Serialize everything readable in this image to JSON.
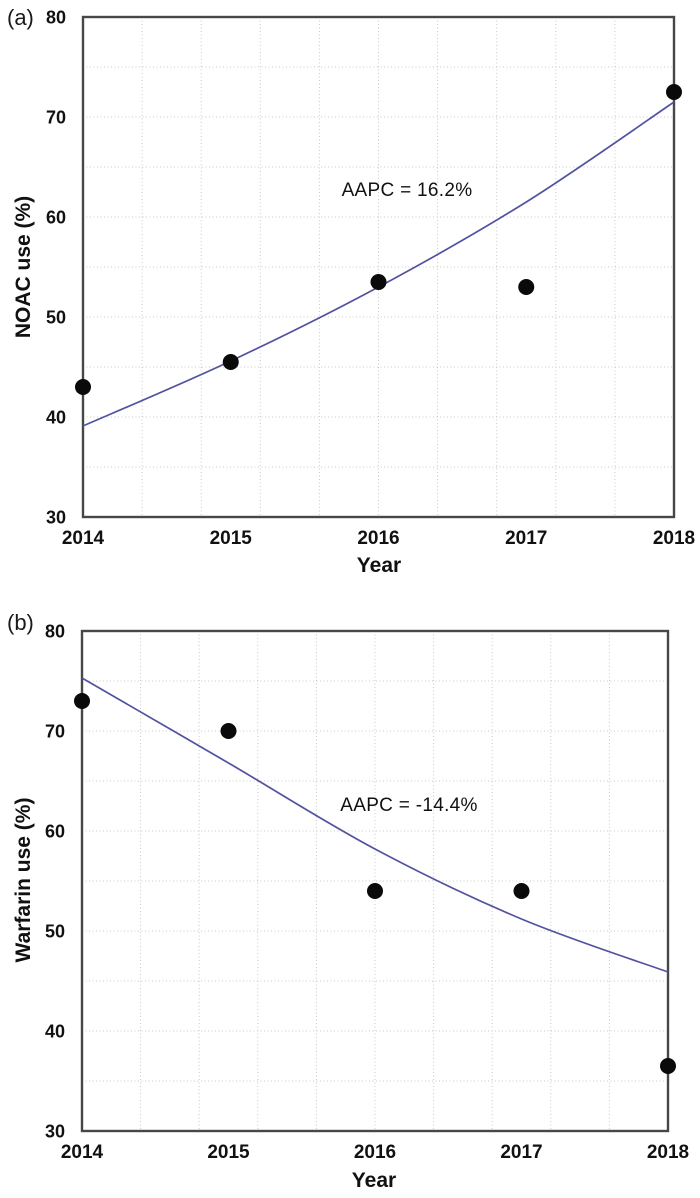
{
  "figure_type": "two-panel scatter plot with fitted trend lines",
  "chart_data": [
    {
      "type": "scatter",
      "panel_label": "(a)",
      "xlabel": "Year",
      "ylabel": "NOAC use (%)",
      "annotation": "AAPC = 16.2%",
      "x": [
        2014,
        2015,
        2016,
        2017,
        2018
      ],
      "points": [
        43.0,
        45.5,
        53.5,
        53.0,
        72.5
      ],
      "trend_line": [
        39.1,
        45.6,
        53.0,
        61.5,
        71.5
      ],
      "xlim": [
        2014,
        2018
      ],
      "ylim": [
        30,
        80
      ],
      "xtick_labels": [
        "2014",
        "2015",
        "2016",
        "2017",
        "2018"
      ],
      "ytick_values": [
        80,
        70,
        60,
        50,
        40,
        30
      ],
      "ytick_labels": [
        "80",
        "70",
        "60",
        "50",
        "40",
        "30"
      ],
      "grid": true,
      "grid_divisions_x": 10,
      "grid_divisions_y": 10,
      "legend": "none",
      "line_color": "#5152a0",
      "point_color": "#0a0a0a",
      "grid_color": "#ccc9c2",
      "border_color": "#474747"
    },
    {
      "type": "scatter",
      "panel_label": "(b)",
      "xlabel": "Year",
      "ylabel": "Warfarin use (%)",
      "annotation": "AAPC = -14.4%",
      "x": [
        2014,
        2015,
        2016,
        2017,
        2018
      ],
      "points": [
        73.0,
        70.0,
        54.0,
        54.0,
        36.5
      ],
      "trend_line": [
        75.3,
        66.8,
        58.2,
        51.2,
        45.9
      ],
      "xlim": [
        2014,
        2018
      ],
      "ylim": [
        30,
        80
      ],
      "xtick_labels": [
        "2014",
        "2015",
        "2016",
        "2017",
        "2018"
      ],
      "ytick_values": [
        80,
        70,
        60,
        50,
        40,
        30
      ],
      "ytick_labels": [
        "80",
        "70",
        "60",
        "50",
        "40",
        "30"
      ],
      "grid": true,
      "grid_divisions_x": 10,
      "grid_divisions_y": 10,
      "legend": "none",
      "line_color": "#5152a0",
      "point_color": "#0a0a0a",
      "grid_color": "#ccc9c2",
      "border_color": "#474747"
    }
  ]
}
